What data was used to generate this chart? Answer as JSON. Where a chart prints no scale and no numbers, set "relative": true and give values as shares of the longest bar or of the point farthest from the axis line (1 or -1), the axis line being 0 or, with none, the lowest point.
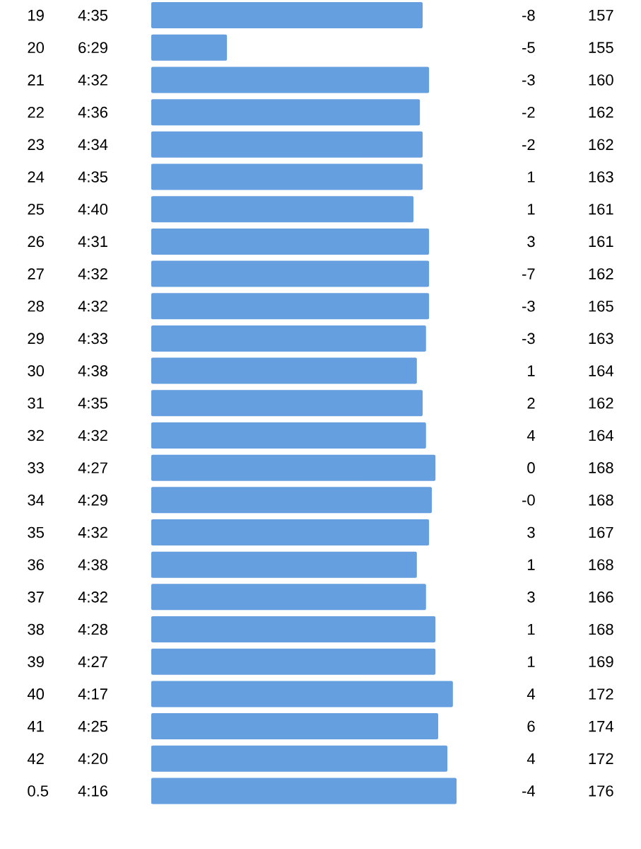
{
  "chart_data": {
    "type": "bar",
    "orientation": "horizontal",
    "relative": true,
    "color": "#659fe0",
    "categories": [
      "19",
      "20",
      "21",
      "22",
      "23",
      "24",
      "25",
      "26",
      "27",
      "28",
      "29",
      "30",
      "31",
      "32",
      "33",
      "34",
      "35",
      "36",
      "37",
      "38",
      "39",
      "40",
      "41",
      "42",
      "0.5"
    ],
    "values": [
      0.889,
      0.248,
      0.91,
      0.88,
      0.889,
      0.889,
      0.859,
      0.91,
      0.91,
      0.91,
      0.9,
      0.87,
      0.889,
      0.9,
      0.931,
      0.919,
      0.91,
      0.87,
      0.9,
      0.931,
      0.931,
      0.988,
      0.94,
      0.97,
      1
    ],
    "annotations": [
      "4:35",
      "-8",
      "157",
      "6:29",
      "-5",
      "155",
      "4:32",
      "-3",
      "160",
      "4:36",
      "-2",
      "162",
      "4:34",
      "-2",
      "162",
      "4:35",
      "1",
      "163",
      "4:40",
      "1",
      "161",
      "4:31",
      "3",
      "161",
      "4:32",
      "-7",
      "162",
      "4:32",
      "-3",
      "165",
      "4:33",
      "-3",
      "163",
      "4:38",
      "1",
      "164",
      "4:35",
      "2",
      "162",
      "4:32",
      "4",
      "164",
      "4:27",
      "0",
      "168",
      "4:29",
      "-0",
      "168",
      "4:32",
      "3",
      "167",
      "4:38",
      "1",
      "168",
      "4:32",
      "3",
      "166",
      "4:28",
      "1",
      "168",
      "4:27",
      "1",
      "169",
      "4:17",
      "4",
      "172",
      "4:25",
      "6",
      "174",
      "4:20",
      "4",
      "172",
      "4:16",
      "-4",
      "176"
    ]
  }
}
